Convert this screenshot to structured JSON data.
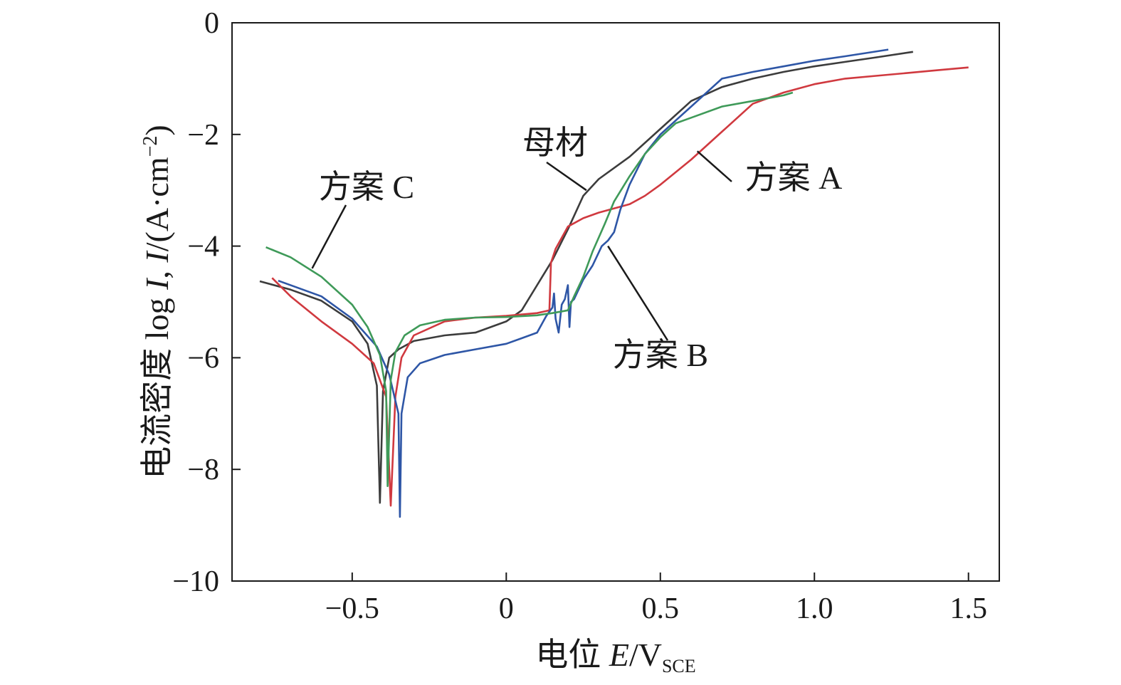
{
  "chart_data": {
    "type": "line",
    "xlabel_prefix": "电位 ",
    "xlabel_var": "E",
    "xlabel_unit": "/V",
    "xlabel_sub": "SCE",
    "ylabel_prefix": "电流密度 log ",
    "ylabel_var1": "I",
    "ylabel_mid": ", ",
    "ylabel_var2": "I",
    "ylabel_unit": "/(A·cm",
    "ylabel_sup": "−2",
    "ylabel_close": ")",
    "xlim": [
      -0.89,
      1.6
    ],
    "ylim": [
      -10,
      0
    ],
    "xticks": [
      -0.5,
      0,
      0.5,
      1.0,
      1.5
    ],
    "xtick_labels": [
      "−0.5",
      "0",
      "0.5",
      "1.0",
      "1.5"
    ],
    "yticks": [
      0,
      -2,
      -4,
      -6,
      -8,
      -10
    ],
    "ytick_labels": [
      "0",
      "−2",
      "−4",
      "−6",
      "−8",
      "−10"
    ],
    "grid": false,
    "series": [
      {
        "name": "母材",
        "color": "#3c3c3c",
        "points": [
          [
            -0.8,
            -4.63
          ],
          [
            -0.7,
            -4.78
          ],
          [
            -0.6,
            -4.98
          ],
          [
            -0.5,
            -5.35
          ],
          [
            -0.45,
            -5.75
          ],
          [
            -0.42,
            -6.5
          ],
          [
            -0.41,
            -8.6
          ],
          [
            -0.4,
            -6.6
          ],
          [
            -0.38,
            -6.0
          ],
          [
            -0.35,
            -5.85
          ],
          [
            -0.3,
            -5.7
          ],
          [
            -0.2,
            -5.6
          ],
          [
            -0.1,
            -5.55
          ],
          [
            0.0,
            -5.35
          ],
          [
            0.05,
            -5.15
          ],
          [
            0.1,
            -4.7
          ],
          [
            0.15,
            -4.25
          ],
          [
            0.2,
            -3.7
          ],
          [
            0.25,
            -3.1
          ],
          [
            0.3,
            -2.8
          ],
          [
            0.4,
            -2.4
          ],
          [
            0.5,
            -1.9
          ],
          [
            0.6,
            -1.4
          ],
          [
            0.7,
            -1.15
          ],
          [
            0.8,
            -1.0
          ],
          [
            0.9,
            -0.88
          ],
          [
            1.0,
            -0.78
          ],
          [
            1.1,
            -0.7
          ],
          [
            1.2,
            -0.62
          ],
          [
            1.32,
            -0.52
          ]
        ],
        "callout": {
          "label": "母材",
          "at": [
            0.26,
            -3.0
          ]
        }
      },
      {
        "name": "方案 A",
        "color": "#d0393f",
        "points": [
          [
            -0.76,
            -4.57
          ],
          [
            -0.7,
            -4.9
          ],
          [
            -0.6,
            -5.35
          ],
          [
            -0.5,
            -5.75
          ],
          [
            -0.43,
            -6.1
          ],
          [
            -0.39,
            -6.7
          ],
          [
            -0.375,
            -8.65
          ],
          [
            -0.36,
            -6.7
          ],
          [
            -0.34,
            -6.0
          ],
          [
            -0.3,
            -5.6
          ],
          [
            -0.2,
            -5.35
          ],
          [
            -0.1,
            -5.28
          ],
          [
            0.0,
            -5.25
          ],
          [
            0.1,
            -5.2
          ],
          [
            0.14,
            -5.15
          ],
          [
            0.145,
            -4.3
          ],
          [
            0.16,
            -4.05
          ],
          [
            0.2,
            -3.65
          ],
          [
            0.25,
            -3.5
          ],
          [
            0.3,
            -3.4
          ],
          [
            0.4,
            -3.25
          ],
          [
            0.45,
            -3.1
          ],
          [
            0.5,
            -2.9
          ],
          [
            0.6,
            -2.45
          ],
          [
            0.7,
            -1.95
          ],
          [
            0.8,
            -1.45
          ],
          [
            0.9,
            -1.25
          ],
          [
            1.0,
            -1.1
          ],
          [
            1.1,
            -1.0
          ],
          [
            1.2,
            -0.95
          ],
          [
            1.3,
            -0.9
          ],
          [
            1.4,
            -0.85
          ],
          [
            1.5,
            -0.8
          ]
        ],
        "callout": {
          "label": "方案 A",
          "at": [
            0.62,
            -2.3
          ]
        }
      },
      {
        "name": "方案 B",
        "color": "#2e56a6",
        "points": [
          [
            -0.74,
            -4.62
          ],
          [
            -0.6,
            -4.9
          ],
          [
            -0.5,
            -5.3
          ],
          [
            -0.42,
            -5.8
          ],
          [
            -0.38,
            -6.3
          ],
          [
            -0.35,
            -7.0
          ],
          [
            -0.345,
            -8.85
          ],
          [
            -0.34,
            -7.0
          ],
          [
            -0.32,
            -6.35
          ],
          [
            -0.28,
            -6.1
          ],
          [
            -0.2,
            -5.95
          ],
          [
            -0.1,
            -5.85
          ],
          [
            0.0,
            -5.75
          ],
          [
            0.05,
            -5.65
          ],
          [
            0.1,
            -5.55
          ],
          [
            0.13,
            -5.25
          ],
          [
            0.15,
            -5.1
          ],
          [
            0.155,
            -4.85
          ],
          [
            0.16,
            -5.3
          ],
          [
            0.17,
            -5.55
          ],
          [
            0.18,
            -5.05
          ],
          [
            0.19,
            -4.95
          ],
          [
            0.2,
            -4.7
          ],
          [
            0.205,
            -5.45
          ],
          [
            0.21,
            -5.0
          ],
          [
            0.22,
            -4.95
          ],
          [
            0.25,
            -4.6
          ],
          [
            0.28,
            -4.35
          ],
          [
            0.31,
            -4.0
          ],
          [
            0.33,
            -3.9
          ],
          [
            0.35,
            -3.75
          ],
          [
            0.37,
            -3.35
          ],
          [
            0.4,
            -2.9
          ],
          [
            0.45,
            -2.35
          ],
          [
            0.5,
            -2.0
          ],
          [
            0.55,
            -1.75
          ],
          [
            0.6,
            -1.5
          ],
          [
            0.7,
            -1.0
          ],
          [
            0.8,
            -0.88
          ],
          [
            0.9,
            -0.78
          ],
          [
            1.0,
            -0.68
          ],
          [
            1.1,
            -0.6
          ],
          [
            1.24,
            -0.48
          ]
        ],
        "callout": {
          "label": "方案 B",
          "at": [
            0.33,
            -4.0
          ]
        }
      },
      {
        "name": "方案 C",
        "color": "#3f9a59",
        "points": [
          [
            -0.78,
            -4.02
          ],
          [
            -0.7,
            -4.2
          ],
          [
            -0.6,
            -4.55
          ],
          [
            -0.5,
            -5.05
          ],
          [
            -0.45,
            -5.45
          ],
          [
            -0.41,
            -5.95
          ],
          [
            -0.39,
            -6.6
          ],
          [
            -0.385,
            -8.3
          ],
          [
            -0.375,
            -6.4
          ],
          [
            -0.36,
            -5.9
          ],
          [
            -0.33,
            -5.6
          ],
          [
            -0.28,
            -5.42
          ],
          [
            -0.2,
            -5.32
          ],
          [
            -0.1,
            -5.28
          ],
          [
            0.0,
            -5.27
          ],
          [
            0.1,
            -5.24
          ],
          [
            0.15,
            -5.2
          ],
          [
            0.2,
            -5.15
          ],
          [
            0.22,
            -4.9
          ],
          [
            0.25,
            -4.55
          ],
          [
            0.28,
            -4.1
          ],
          [
            0.32,
            -3.6
          ],
          [
            0.35,
            -3.2
          ],
          [
            0.4,
            -2.75
          ],
          [
            0.45,
            -2.35
          ],
          [
            0.5,
            -2.05
          ],
          [
            0.55,
            -1.8
          ],
          [
            0.6,
            -1.7
          ],
          [
            0.7,
            -1.5
          ],
          [
            0.8,
            -1.4
          ],
          [
            0.9,
            -1.3
          ],
          [
            0.93,
            -1.25
          ]
        ],
        "callout": {
          "label": "方案 C",
          "at": [
            -0.63,
            -4.4
          ]
        }
      }
    ]
  }
}
